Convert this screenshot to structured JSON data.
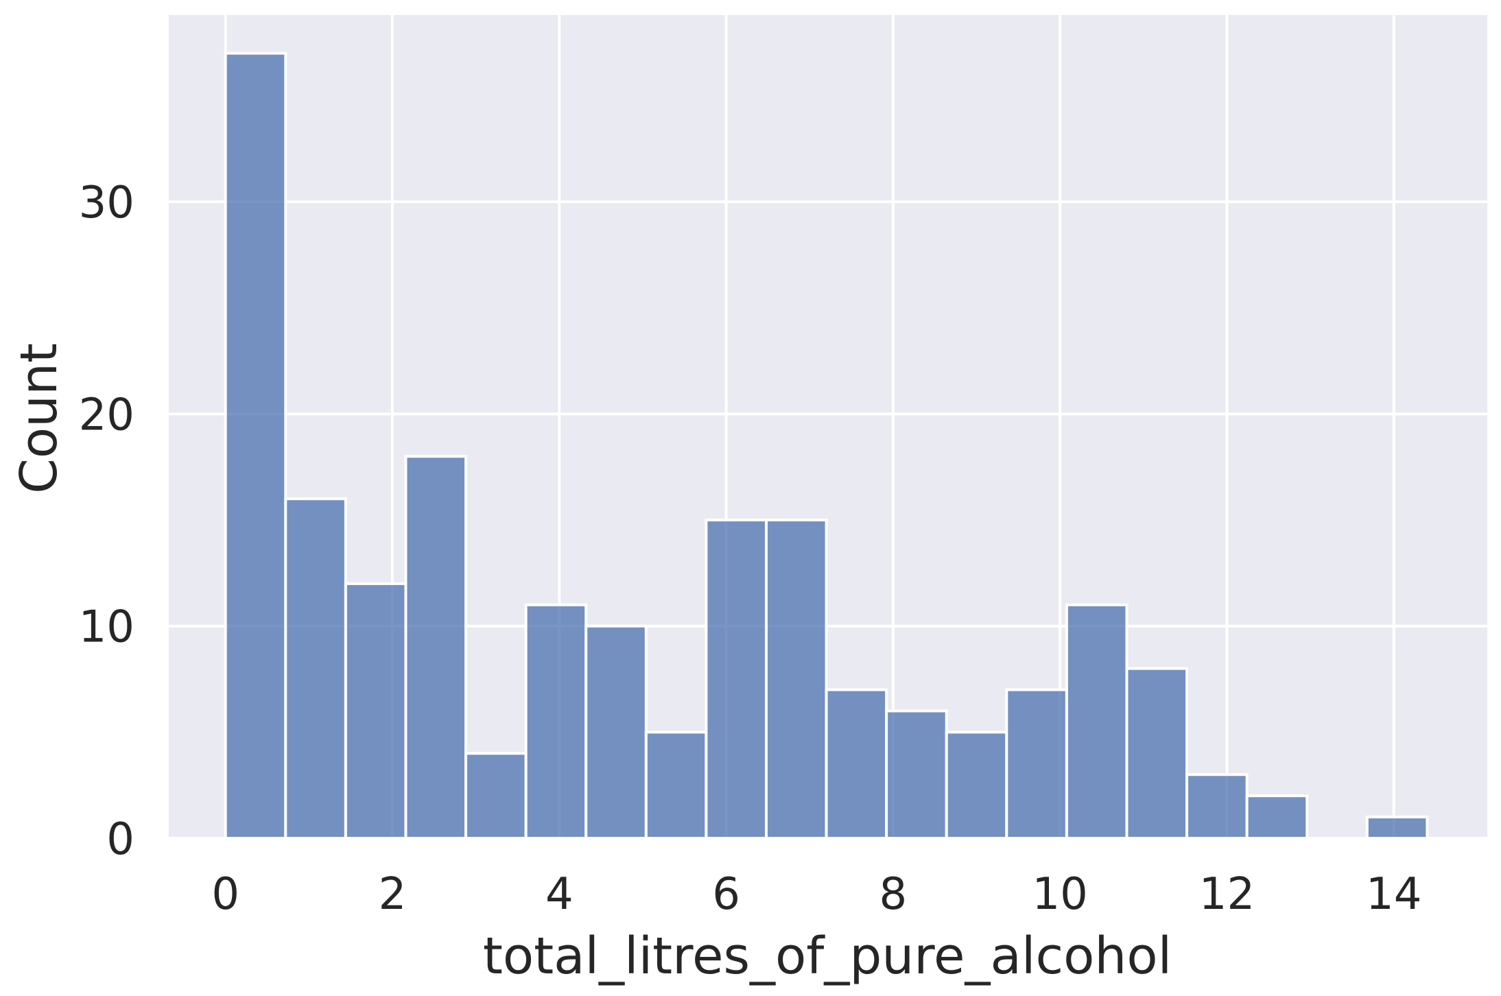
{
  "chart_data": {
    "type": "bar",
    "xlabel": "total_litres_of_pure_alcohol",
    "ylabel": "Count",
    "xlim": [
      -0.68,
      15.12
    ],
    "ylim": [
      0,
      38.8
    ],
    "grid": true,
    "colors": {
      "background": "#eaeaf2",
      "grid": "#ffffff",
      "bar_fill": "#4c72b0",
      "bar_edge": "#ffffff",
      "text": "#262626"
    },
    "x_ticks": [
      {
        "value": 0,
        "label": "0"
      },
      {
        "value": 2,
        "label": "2"
      },
      {
        "value": 4,
        "label": "4"
      },
      {
        "value": 6,
        "label": "6"
      },
      {
        "value": 8,
        "label": "8"
      },
      {
        "value": 10,
        "label": "10"
      },
      {
        "value": 12,
        "label": "12"
      },
      {
        "value": 14,
        "label": "14"
      }
    ],
    "y_ticks": [
      {
        "value": 0,
        "label": "0"
      },
      {
        "value": 10,
        "label": "10"
      },
      {
        "value": 20,
        "label": "20"
      },
      {
        "value": 30,
        "label": "30"
      }
    ],
    "bin_width": 0.72,
    "bins": [
      {
        "start": 0.0,
        "count": 37
      },
      {
        "start": 0.72,
        "count": 16
      },
      {
        "start": 1.44,
        "count": 12
      },
      {
        "start": 2.16,
        "count": 18
      },
      {
        "start": 2.88,
        "count": 4
      },
      {
        "start": 3.6,
        "count": 11
      },
      {
        "start": 4.32,
        "count": 10
      },
      {
        "start": 5.04,
        "count": 5
      },
      {
        "start": 5.76,
        "count": 15
      },
      {
        "start": 6.48,
        "count": 15
      },
      {
        "start": 7.2,
        "count": 7
      },
      {
        "start": 7.92,
        "count": 6
      },
      {
        "start": 8.64,
        "count": 5
      },
      {
        "start": 9.36,
        "count": 7
      },
      {
        "start": 10.08,
        "count": 11
      },
      {
        "start": 10.8,
        "count": 8
      },
      {
        "start": 11.52,
        "count": 3
      },
      {
        "start": 12.24,
        "count": 2
      },
      {
        "start": 12.96,
        "count": 0
      },
      {
        "start": 13.68,
        "count": 1
      }
    ]
  }
}
